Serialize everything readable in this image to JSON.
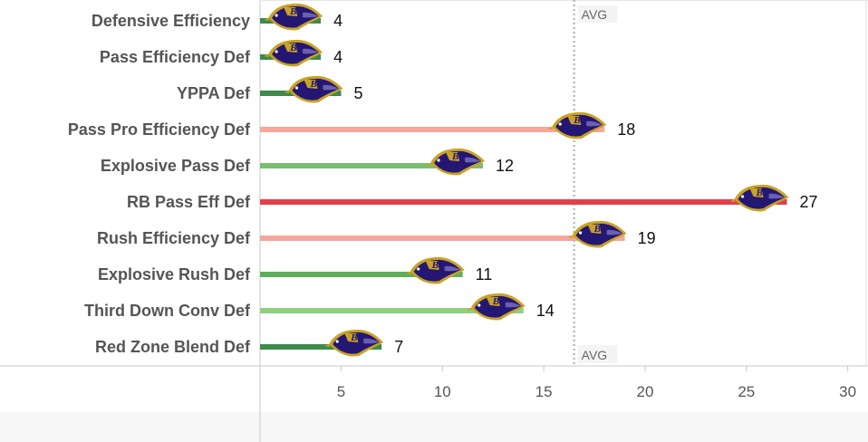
{
  "chart_data": {
    "type": "bar",
    "orientation": "horizontal",
    "categories": [
      "Defensive Efficiency",
      "Pass Efficiency Def",
      "YPPA Def",
      "Pass Pro Efficiency Def",
      "Explosive Pass Def",
      "RB Pass Eff Def",
      "Rush Efficiency Def",
      "Explosive Rush Def",
      "Third Down Conv Def",
      "Red Zone Blend Def"
    ],
    "values": [
      4,
      4,
      5,
      18,
      12,
      27,
      19,
      11,
      14,
      7
    ],
    "bar_colors": [
      "#3e8a4a",
      "#3e8a4a",
      "#3e8a4a",
      "#f5a89a",
      "#79bf6e",
      "#e0404a",
      "#f5a89a",
      "#5fae5a",
      "#8fd07f",
      "#3e8a4a"
    ],
    "marker": "ravens-logo-icon",
    "xlim": [
      1,
      31
    ],
    "xticks": [
      5,
      10,
      15,
      20,
      25,
      30
    ],
    "reference_line": {
      "value": 16.5,
      "label": "AVG",
      "style": "dotted"
    },
    "xlabel": "",
    "ylabel": "",
    "grid": false
  }
}
